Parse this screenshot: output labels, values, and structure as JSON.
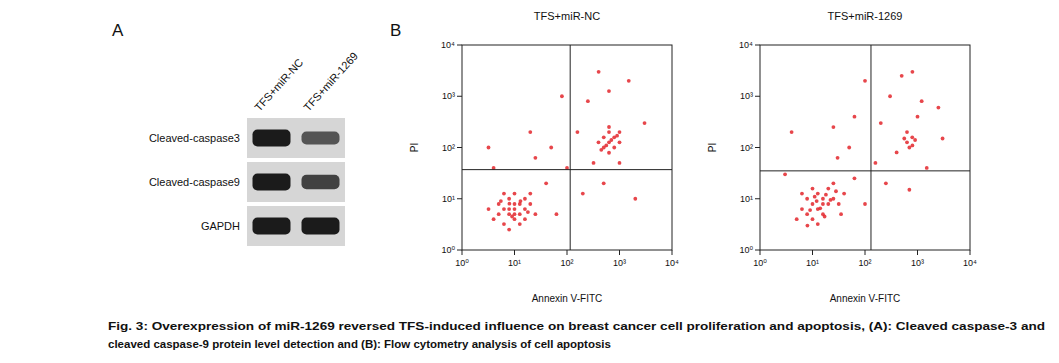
{
  "chart_data": [
    {
      "type": "scatter",
      "title": "TFS+miR-NC",
      "x_label": "Annexin V-FITC",
      "y_label": "PI",
      "log": true,
      "color": "#e3262b",
      "marker": "dot",
      "xlim": [
        1,
        10000
      ],
      "ylim": [
        1,
        10000
      ],
      "xticks": [
        {
          "value": 1,
          "label": "10⁰"
        },
        {
          "value": 10,
          "label": "10¹"
        },
        {
          "value": 100,
          "label": "10²"
        },
        {
          "value": 1000,
          "label": "10³"
        },
        {
          "value": 10000,
          "label": "10⁴"
        }
      ],
      "yticks": [
        {
          "value": 1,
          "label": "10⁰"
        },
        {
          "value": 10,
          "label": "10¹"
        },
        {
          "value": 100,
          "label": "10²"
        },
        {
          "value": 1000,
          "label": "10³"
        },
        {
          "value": 10000,
          "label": "10⁴"
        }
      ],
      "quadrant_gates": {
        "x": 115,
        "y": 37
      },
      "x": [
        10,
        7.9,
        12.6,
        6.3,
        10,
        15.8,
        7.9,
        5,
        12.6,
        10,
        6.3,
        20,
        7.9,
        15.8,
        4,
        10,
        12.6,
        5,
        25,
        7.9,
        6.3,
        20,
        3.2,
        15.8,
        10,
        8,
        13,
        9,
        5.5,
        18,
        40,
        63,
        50,
        100,
        25,
        4,
        200,
        320,
        158,
        20,
        3.2,
        500,
        1000,
        2000,
        80,
        400,
        1500,
        3000,
        250,
        630,
        631,
        794,
        501,
        631,
        1000,
        794,
        501,
        631,
        1000,
        398,
        700,
        560,
        900,
        631,
        450
      ],
      "values": [
        6.3,
        5,
        7.9,
        6.3,
        4,
        6.3,
        10,
        5,
        5,
        7.9,
        3.2,
        7.9,
        6.3,
        10,
        4,
        12.6,
        3.2,
        7.9,
        5,
        2.5,
        12.6,
        12.6,
        6.3,
        4,
        5,
        8,
        9,
        4.5,
        9,
        5.5,
        20,
        5,
        100,
        40,
        63,
        40,
        12.6,
        50,
        200,
        200,
        100,
        20,
        50,
        10,
        1000,
        3000,
        2000,
        300,
        800,
        1260,
        126,
        158,
        100,
        200,
        126,
        100,
        158,
        79,
        200,
        126,
        140,
        110,
        170,
        251,
        90
      ]
    },
    {
      "type": "scatter",
      "title": "TFS+miR-1269",
      "x_label": "Annexin V-FITC",
      "y_label": "PI",
      "log": true,
      "color": "#e3262b",
      "marker": "dot",
      "xlim": [
        1,
        10000
      ],
      "ylim": [
        1,
        10000
      ],
      "xticks": [
        {
          "value": 1,
          "label": "10⁰"
        },
        {
          "value": 10,
          "label": "10¹"
        },
        {
          "value": 100,
          "label": "10²"
        },
        {
          "value": 1000,
          "label": "10³"
        },
        {
          "value": 10000,
          "label": "10⁴"
        }
      ],
      "yticks": [
        {
          "value": 1,
          "label": "10⁰"
        },
        {
          "value": 10,
          "label": "10¹"
        },
        {
          "value": 100,
          "label": "10²"
        },
        {
          "value": 1000,
          "label": "10³"
        },
        {
          "value": 10000,
          "label": "10⁴"
        }
      ],
      "quadrant_gates": {
        "x": 130,
        "y": 35
      },
      "x": [
        12.6,
        10,
        15.8,
        7.9,
        20,
        12.6,
        10,
        6.3,
        25,
        15.8,
        7.9,
        20,
        12.6,
        31.6,
        10,
        5,
        15.8,
        25,
        6.3,
        40,
        12,
        18,
        9,
        14,
        22,
        11,
        17,
        28,
        8,
        35,
        63,
        100,
        50,
        158,
        30,
        3,
        250,
        400,
        200,
        25,
        4,
        700,
        1500,
        3000,
        100,
        500,
        1200,
        2500,
        300,
        800,
        63,
        1000,
        631,
        794,
        700,
        631,
        900,
        560,
        800
      ],
      "values": [
        6.3,
        7.9,
        10,
        5,
        7.9,
        12.6,
        4,
        6.3,
        10,
        5,
        10,
        15.8,
        3.2,
        7.9,
        15.8,
        4,
        7.9,
        20,
        12.6,
        12.6,
        9,
        12,
        6,
        6.5,
        9.5,
        11,
        4.5,
        14,
        3,
        5,
        25,
        7.9,
        100,
        50,
        63,
        30,
        20,
        80,
        300,
        250,
        200,
        15,
        40,
        150,
        2000,
        2500,
        800,
        600,
        1000,
        3000,
        400,
        400,
        126,
        158,
        100,
        200,
        140,
        150,
        110
      ]
    }
  ],
  "panel_a": {
    "label": "A",
    "lanes": [
      "TFS+miR-NC",
      "TFS+miR-1269"
    ],
    "rows": [
      {
        "label": "Cleaved-caspase3",
        "values": [
          1.0,
          0.55
        ]
      },
      {
        "label": "Cleaved-caspase9",
        "values": [
          1.0,
          0.7
        ]
      },
      {
        "label": "GAPDH",
        "values": [
          1.0,
          1.0
        ]
      }
    ]
  },
  "panel_b": {
    "label": "B"
  },
  "caption": [
    "Fig. 3: Overexpression of miR-1269 reversed TFS-induced influence on breast cancer cell proliferation and apoptosis, (A): Cleaved caspase-3 and",
    "cleaved caspase-9 protein level detection and (B): Flow cytometry analysis of cell apoptosis"
  ]
}
